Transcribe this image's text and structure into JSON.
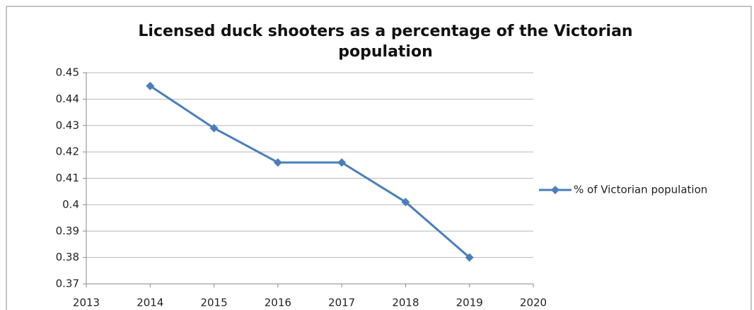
{
  "chart_data": {
    "type": "line",
    "title": "Licensed duck shooters as a percentage of the Victorian population",
    "x": [
      2014,
      2015,
      2016,
      2017,
      2018,
      2019
    ],
    "series": [
      {
        "name": "% of Victorian population",
        "color": "#4a7ebb",
        "values": [
          0.445,
          0.429,
          0.416,
          0.416,
          0.401,
          0.38
        ]
      }
    ],
    "xlim": [
      2013,
      2020
    ],
    "xticks": [
      2013,
      2014,
      2015,
      2016,
      2017,
      2018,
      2019,
      2020
    ],
    "ylim": [
      0.37,
      0.45
    ],
    "yticks": [
      0.37,
      0.38,
      0.39,
      0.4,
      0.41,
      0.42,
      0.43,
      0.44,
      0.45
    ],
    "grid": true,
    "legend": "right"
  }
}
